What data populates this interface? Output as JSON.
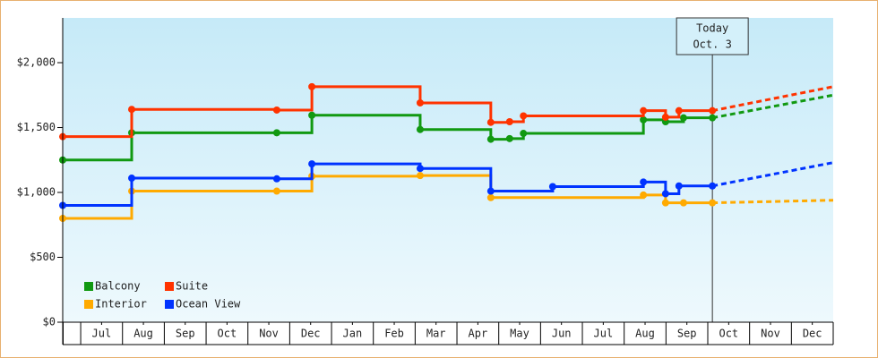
{
  "chart_data": {
    "type": "step-line",
    "ylim": [
      0,
      2345
    ],
    "yticks": [
      {
        "value": 0,
        "label": "$0"
      },
      {
        "value": 500,
        "label": "$500"
      },
      {
        "value": 1000,
        "label": "$1,000"
      },
      {
        "value": 1500,
        "label": "$1,500"
      },
      {
        "value": 2000,
        "label": "$2,000"
      }
    ],
    "xlim": [
      -0.43,
      18
    ],
    "xticks": [
      {
        "value": 0.5,
        "label": "Jul"
      },
      {
        "value": 1.5,
        "label": "Aug"
      },
      {
        "value": 2.5,
        "label": "Sep"
      },
      {
        "value": 3.5,
        "label": "Oct"
      },
      {
        "value": 4.5,
        "label": "Nov"
      },
      {
        "value": 5.5,
        "label": "Dec"
      },
      {
        "value": 6.5,
        "label": "Jan"
      },
      {
        "value": 7.5,
        "label": "Feb"
      },
      {
        "value": 8.5,
        "label": "Mar"
      },
      {
        "value": 9.5,
        "label": "Apr"
      },
      {
        "value": 10.5,
        "label": "May"
      },
      {
        "value": 11.5,
        "label": "Jun"
      },
      {
        "value": 12.5,
        "label": "Jul"
      },
      {
        "value": 13.5,
        "label": "Aug"
      },
      {
        "value": 14.5,
        "label": "Sep"
      },
      {
        "value": 15.5,
        "label": "Oct"
      },
      {
        "value": 16.5,
        "label": "Nov"
      },
      {
        "value": 17.5,
        "label": "Dec"
      }
    ],
    "today": {
      "x": 15.11,
      "label": [
        "Today",
        "Oct. 3"
      ]
    },
    "projection_x": [
      15.11,
      18
    ],
    "series": [
      {
        "name": "Balcony",
        "color": "#119911",
        "x": [
          -0.43,
          1.22,
          4.69,
          5.53,
          8.12,
          9.81,
          10.26,
          10.59,
          13.46,
          13.99,
          14.42,
          15.11
        ],
        "values": [
          1250,
          1460,
          1460,
          1595,
          1485,
          1410,
          1415,
          1455,
          1560,
          1545,
          1575,
          1575
        ],
        "projection": [
          1575,
          1750
        ]
      },
      {
        "name": "Suite",
        "color": "#ff3300",
        "x": [
          -0.43,
          1.22,
          4.69,
          5.53,
          8.12,
          9.81,
          10.26,
          10.59,
          13.46,
          13.99,
          14.31,
          15.11
        ],
        "values": [
          1430,
          1640,
          1635,
          1815,
          1690,
          1540,
          1545,
          1590,
          1630,
          1580,
          1630,
          1630
        ],
        "projection": [
          1630,
          1815
        ]
      },
      {
        "name": "Interior",
        "color": "#ffaa00",
        "x": [
          -0.43,
          1.22,
          4.69,
          5.53,
          8.12,
          9.81,
          13.46,
          13.99,
          14.42,
          15.11
        ],
        "values": [
          800,
          1010,
          1010,
          1125,
          1130,
          960,
          980,
          920,
          920,
          920
        ],
        "projection": [
          920,
          940
        ]
      },
      {
        "name": "Ocean View",
        "color": "#0033ff",
        "x": [
          -0.43,
          1.22,
          4.69,
          5.53,
          8.12,
          9.81,
          11.29,
          13.46,
          13.99,
          14.31,
          15.11
        ],
        "values": [
          900,
          1110,
          1105,
          1220,
          1185,
          1010,
          1045,
          1080,
          990,
          1050,
          1050
        ],
        "projection": [
          1050,
          1230
        ]
      }
    ]
  }
}
